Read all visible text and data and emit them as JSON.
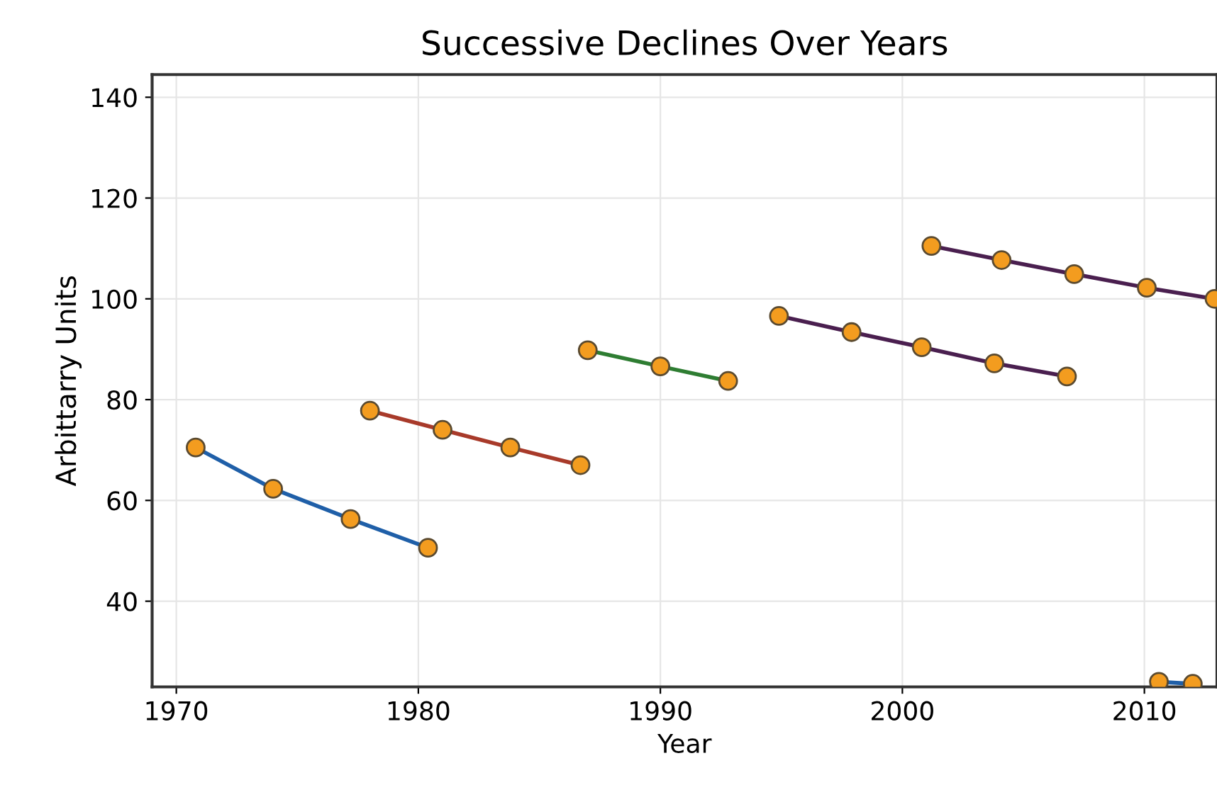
{
  "chart_data": {
    "type": "line",
    "title": "Successive Declines Over Years",
    "xlabel": "Year",
    "ylabel": "Arbittarry Units",
    "xlim": [
      1969,
      2013
    ],
    "ylim": [
      23,
      144.5
    ],
    "xticks": [
      1970,
      1980,
      1990,
      2000,
      2010
    ],
    "yticks": [
      40,
      60,
      80,
      100,
      120,
      140
    ],
    "grid": true,
    "marker": "circle",
    "line_style": "solid",
    "series": [
      {
        "color": "#1f5fa8",
        "colors": [
          "#f39c1f",
          "#f39c1f",
          "#f39c1f",
          "#f39c1f"
        ],
        "x": [
          1970.8,
          1974,
          1977.2,
          1980.4
        ],
        "values": [
          70.5,
          62.3,
          56.3,
          50.6
        ]
      },
      {
        "color": "#a83a2a",
        "colors": [
          "#f39c1f",
          "#f39c1f",
          "#f39c1f",
          "#f39c1f"
        ],
        "x": [
          1978,
          1981,
          1983.8,
          1986.7
        ],
        "values": [
          77.8,
          74,
          70.5,
          67
        ]
      },
      {
        "color": "#2e7d32",
        "colors": [
          "#f39c1f",
          "#f39c1f",
          "#f39c1f"
        ],
        "x": [
          1987,
          1990,
          1992.8
        ],
        "values": [
          89.8,
          86.6,
          83.7
        ]
      },
      {
        "color": "#4a1f4f",
        "colors": [
          "#f39c1f",
          "#f39c1f",
          "#f39c1f",
          "#f39c1f",
          "#f39c1f"
        ],
        "x": [
          1994.9,
          1997.9,
          2000.8,
          2003.8,
          2006.8
        ],
        "values": [
          96.6,
          93.4,
          90.4,
          87.2,
          84.6
        ]
      },
      {
        "color": "#4a1f4f",
        "colors": [
          "#f39c1f",
          "#f39c1f",
          "#f39c1f",
          "#f39c1f",
          "#f39c1f"
        ],
        "x": [
          2001.2,
          2004.1,
          2007.1,
          2010.1,
          2012.9
        ],
        "values": [
          110.5,
          107.7,
          104.9,
          102.2,
          100
        ]
      },
      {
        "color": "#1f5fa8",
        "colors": [
          "#f39c1f",
          "#f39c1f"
        ],
        "x": [
          2010.6,
          2012
        ],
        "values": [
          24,
          23.6
        ]
      }
    ]
  }
}
